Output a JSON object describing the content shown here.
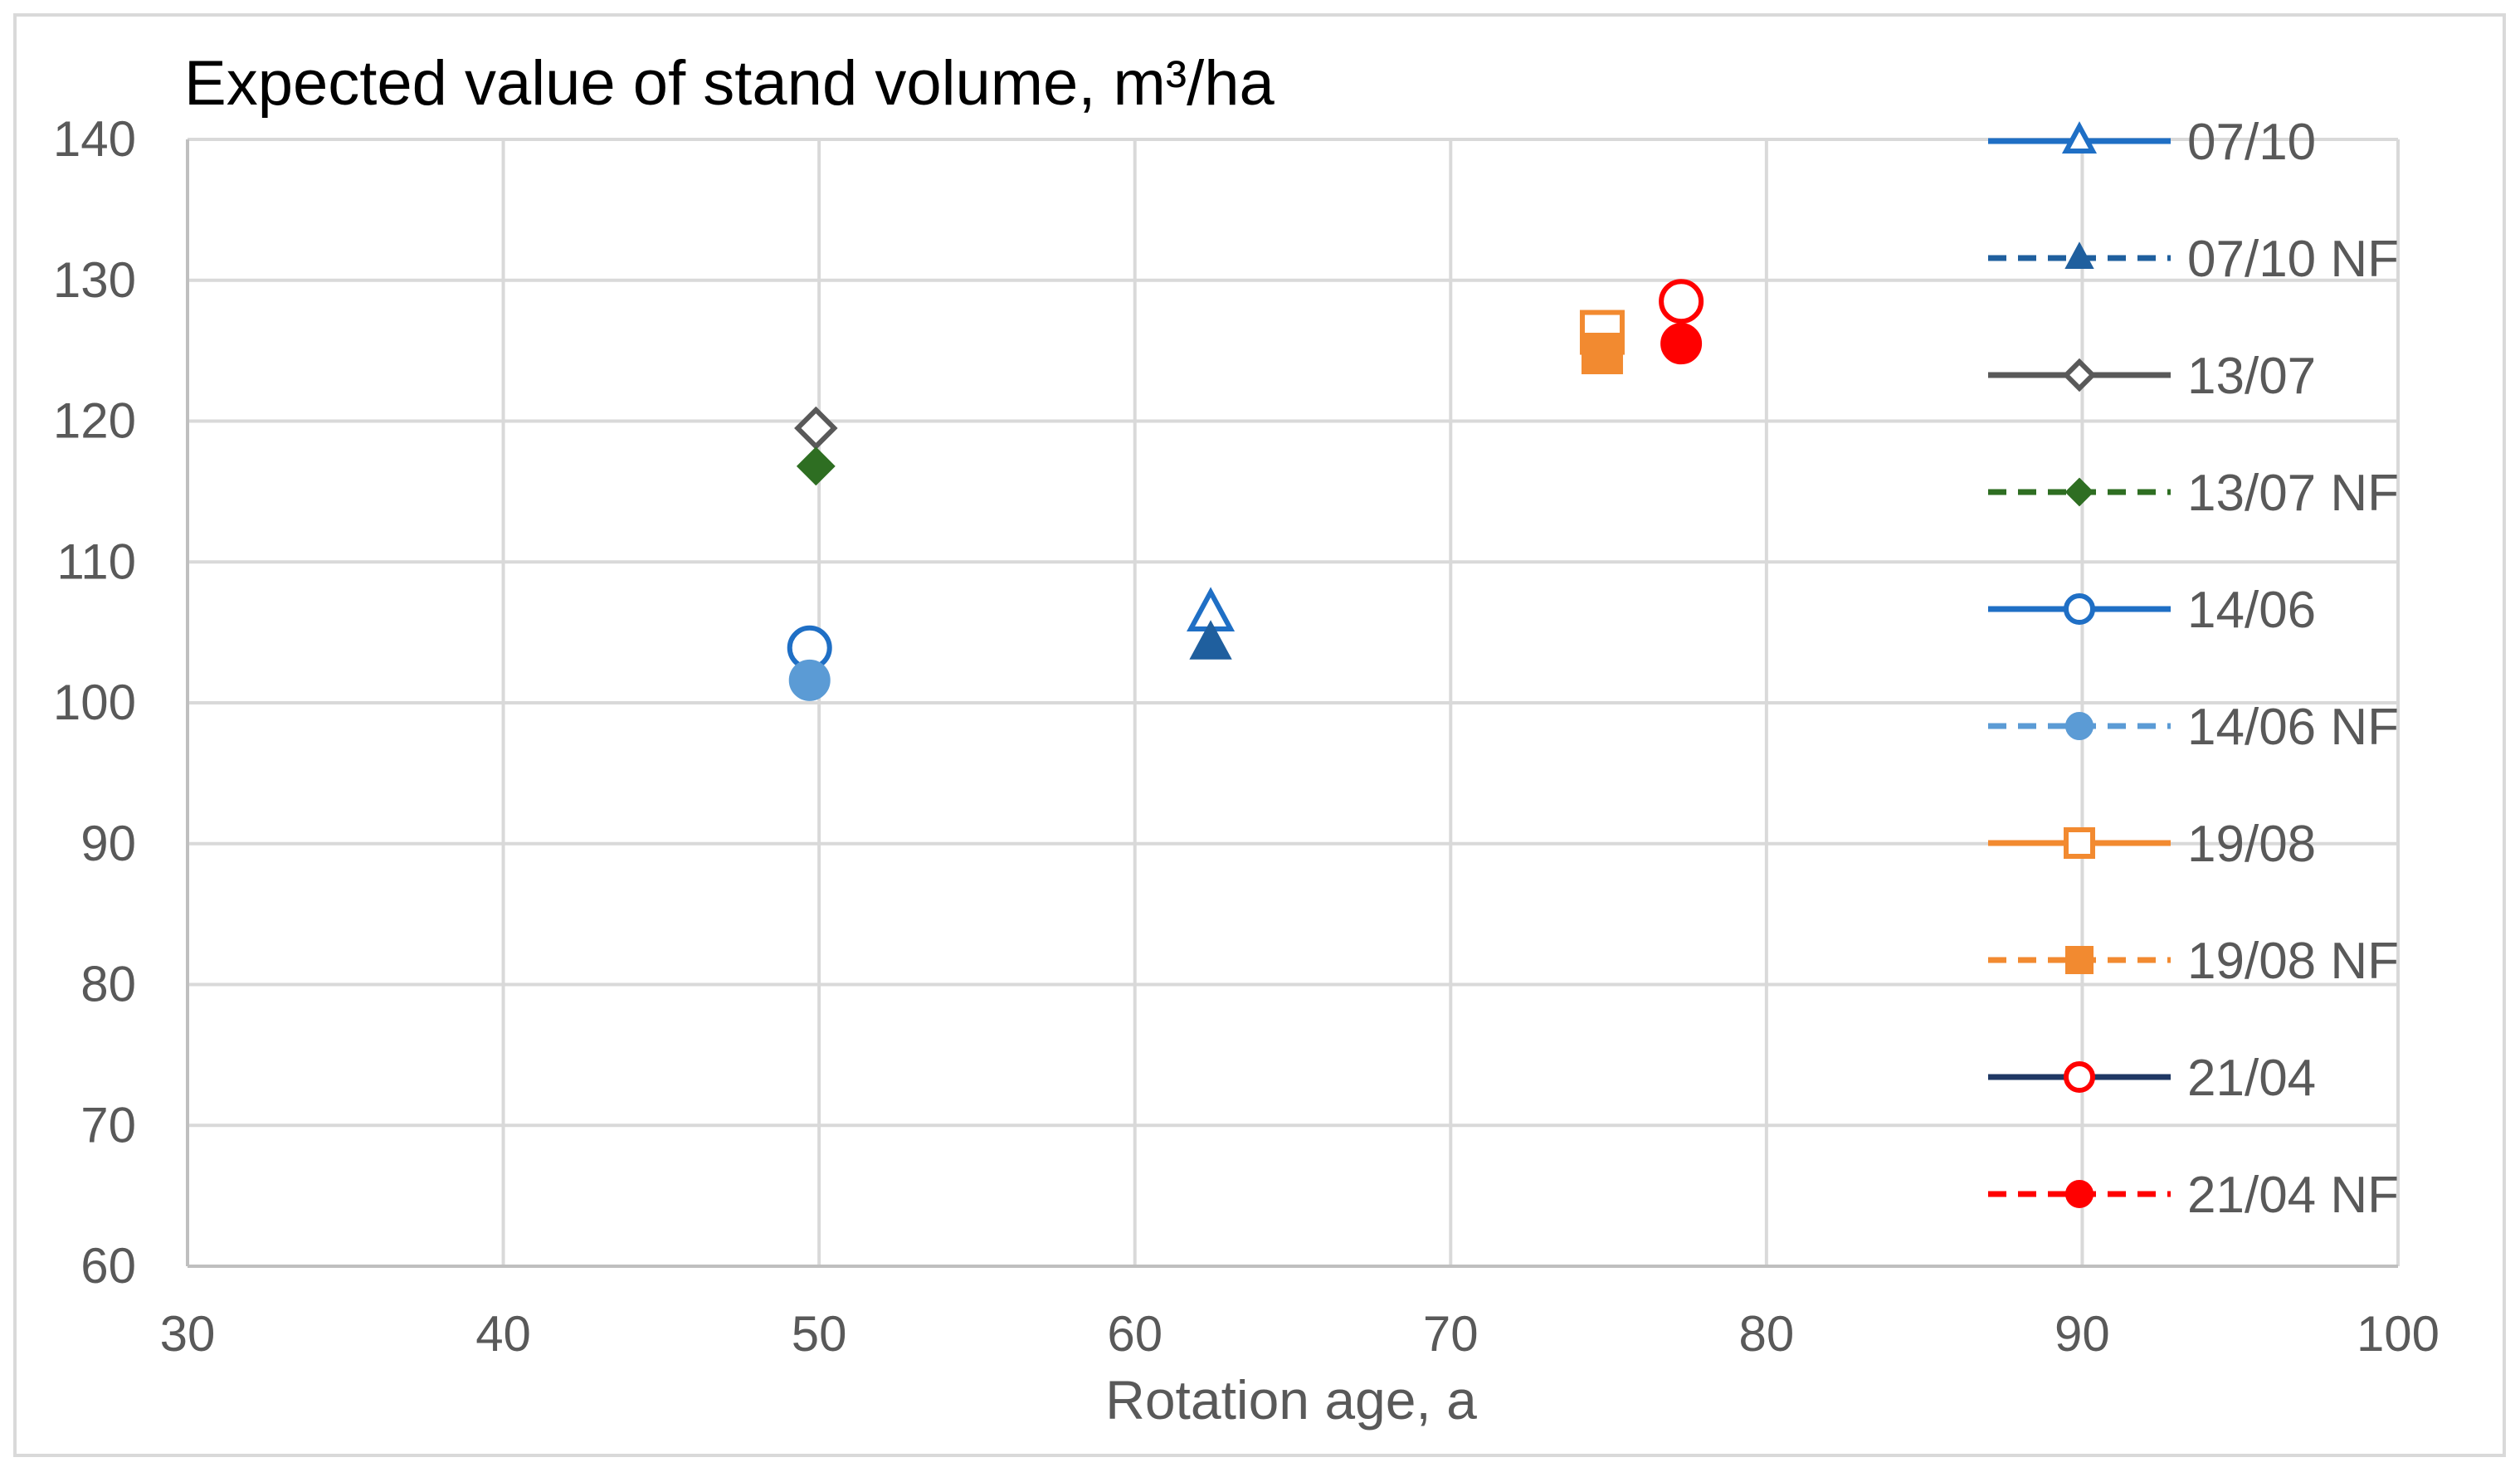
{
  "chart_data": {
    "type": "scatter",
    "title": "Expected value of stand volume,  m³/ha",
    "xlabel": "Rotation age, a",
    "ylabel": "",
    "xlim": [
      30,
      100
    ],
    "ylim": [
      60,
      140
    ],
    "xticks": [
      30,
      40,
      50,
      60,
      70,
      80,
      90,
      100
    ],
    "yticks": [
      60,
      70,
      80,
      90,
      100,
      110,
      120,
      130,
      140
    ],
    "grid": true,
    "legend_position": "right",
    "series": [
      {
        "name": "07/10",
        "color": "#1f6fc5",
        "marker": "triangle",
        "filled": false,
        "line": "solid",
        "points": [
          [
            62.4,
            106.3
          ]
        ]
      },
      {
        "name": "07/10 NF",
        "color": "#1f5f9e",
        "marker": "triangle",
        "filled": true,
        "line": "dashed",
        "points": [
          [
            62.4,
            104.2
          ]
        ]
      },
      {
        "name": "13/07",
        "color": "#595959",
        "marker": "diamond",
        "filled": false,
        "line": "solid",
        "points": [
          [
            49.9,
            119.5
          ]
        ]
      },
      {
        "name": "13/07 NF",
        "color": "#2e6e22",
        "marker": "diamond",
        "filled": true,
        "line": "dashed",
        "points": [
          [
            49.9,
            116.8
          ]
        ]
      },
      {
        "name": "14/06",
        "color": "#1f6fc5",
        "marker": "circle",
        "filled": false,
        "line": "solid",
        "points": [
          [
            49.7,
            103.9
          ]
        ]
      },
      {
        "name": "14/06 NF",
        "color": "#5b9bd5",
        "marker": "circle",
        "filled": true,
        "line": "dashed",
        "points": [
          [
            49.7,
            101.6
          ]
        ]
      },
      {
        "name": "19/08",
        "color": "#f28a30",
        "marker": "square",
        "filled": false,
        "line": "solid",
        "points": [
          [
            74.8,
            126.3
          ]
        ]
      },
      {
        "name": "19/08 NF",
        "color": "#f28a30",
        "marker": "square",
        "filled": true,
        "line": "dashed",
        "points": [
          [
            74.8,
            124.8
          ]
        ]
      },
      {
        "name": "21/04",
        "color": "#ff0000",
        "marker": "circle",
        "filled": false,
        "line": "solid",
        "line_color": "#1f3864",
        "points": [
          [
            77.3,
            128.5
          ]
        ]
      },
      {
        "name": "21/04 NF",
        "color": "#ff0000",
        "marker": "circle",
        "filled": true,
        "line": "dashed",
        "points": [
          [
            77.3,
            125.5
          ]
        ]
      }
    ]
  }
}
